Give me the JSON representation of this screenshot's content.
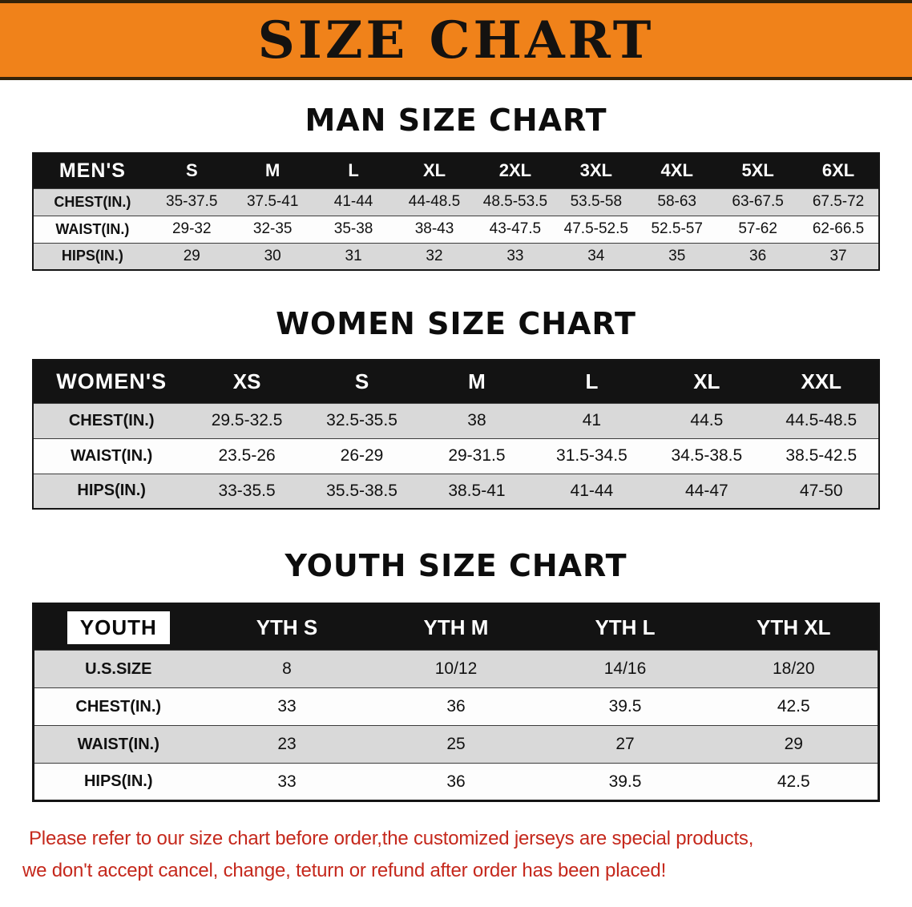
{
  "banner": {
    "title": "SIZE CHART",
    "bg_color": "#f0821a"
  },
  "chart_data": [
    {
      "type": "table",
      "title": "MAN SIZE CHART",
      "columns": [
        "MEN'S",
        "S",
        "M",
        "L",
        "XL",
        "2XL",
        "3XL",
        "4XL",
        "5XL",
        "6XL"
      ],
      "rows": [
        [
          "CHEST(IN.)",
          "35-37.5",
          "37.5-41",
          "41-44",
          "44-48.5",
          "48.5-53.5",
          "53.5-58",
          "58-63",
          "63-67.5",
          "67.5-72"
        ],
        [
          "WAIST(IN.)",
          "29-32",
          "32-35",
          "35-38",
          "38-43",
          "43-47.5",
          "47.5-52.5",
          "52.5-57",
          "57-62",
          "62-66.5"
        ],
        [
          "HIPS(IN.)",
          "29",
          "30",
          "31",
          "32",
          "33",
          "34",
          "35",
          "36",
          "37"
        ]
      ]
    },
    {
      "type": "table",
      "title": "WOMEN SIZE CHART",
      "columns": [
        "WOMEN'S",
        "XS",
        "S",
        "M",
        "L",
        "XL",
        "XXL"
      ],
      "rows": [
        [
          "CHEST(IN.)",
          "29.5-32.5",
          "32.5-35.5",
          "38",
          "41",
          "44.5",
          "44.5-48.5"
        ],
        [
          "WAIST(IN.)",
          "23.5-26",
          "26-29",
          "29-31.5",
          "31.5-34.5",
          "34.5-38.5",
          "38.5-42.5"
        ],
        [
          "HIPS(IN.)",
          "33-35.5",
          "35.5-38.5",
          "38.5-41",
          "41-44",
          "44-47",
          "47-50"
        ]
      ]
    },
    {
      "type": "table",
      "title": "YOUTH SIZE CHART",
      "columns": [
        "YOUTH",
        "YTH S",
        "YTH M",
        "YTH L",
        "YTH XL"
      ],
      "rows": [
        [
          "U.S.SIZE",
          "8",
          "10/12",
          "14/16",
          "18/20"
        ],
        [
          "CHEST(IN.)",
          "33",
          "36",
          "39.5",
          "42.5"
        ],
        [
          "WAIST(IN.)",
          "23",
          "25",
          "27",
          "29"
        ],
        [
          "HIPS(IN.)",
          "33",
          "36",
          "39.5",
          "42.5"
        ]
      ]
    }
  ],
  "footer": {
    "line1": "Please refer to our size chart before order,the customized jerseys are special products,",
    "line2": "we don't accept cancel, change, teturn or refund after order has been placed!",
    "text_color": "#c5281c"
  }
}
